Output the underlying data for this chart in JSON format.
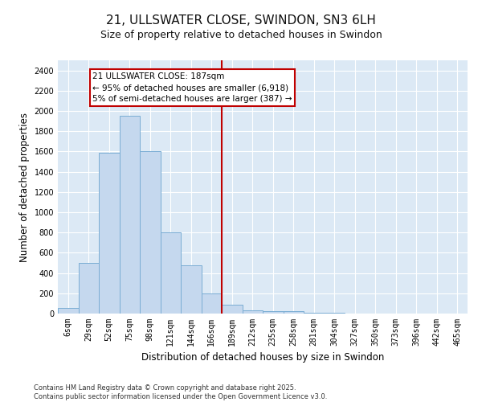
{
  "title": "21, ULLSWATER CLOSE, SWINDON, SN3 6LH",
  "subtitle": "Size of property relative to detached houses in Swindon",
  "xlabel": "Distribution of detached houses by size in Swindon",
  "ylabel": "Number of detached properties",
  "bar_labels": [
    "6sqm",
    "29sqm",
    "52sqm",
    "75sqm",
    "98sqm",
    "121sqm",
    "144sqm",
    "166sqm",
    "189sqm",
    "212sqm",
    "235sqm",
    "258sqm",
    "281sqm",
    "304sqm",
    "327sqm",
    "350sqm",
    "373sqm",
    "396sqm",
    "442sqm",
    "465sqm"
  ],
  "bar_values": [
    55,
    500,
    1590,
    1950,
    1600,
    800,
    480,
    195,
    85,
    35,
    25,
    20,
    10,
    5,
    2,
    2,
    1,
    1,
    0,
    0
  ],
  "bar_color": "#c5d8ee",
  "bar_edgecolor": "#7aadd4",
  "vline_x": 7.5,
  "vline_color": "#c00000",
  "annotation_text": "21 ULLSWATER CLOSE: 187sqm\n← 95% of detached houses are smaller (6,918)\n5% of semi-detached houses are larger (387) →",
  "annotation_box_facecolor": "#ffffff",
  "annotation_box_edgecolor": "#c00000",
  "footer_text": "Contains HM Land Registry data © Crown copyright and database right 2025.\nContains public sector information licensed under the Open Government Licence v3.0.",
  "ylim": [
    0,
    2500
  ],
  "yticks": [
    0,
    200,
    400,
    600,
    800,
    1000,
    1200,
    1400,
    1600,
    1800,
    2000,
    2200,
    2400
  ],
  "fig_bg_color": "#ffffff",
  "plot_bg_color": "#dce9f5",
  "title_fontsize": 11,
  "subtitle_fontsize": 9,
  "tick_fontsize": 7,
  "ylabel_fontsize": 8.5,
  "xlabel_fontsize": 8.5,
  "footer_fontsize": 6,
  "annot_fontsize": 7.5
}
